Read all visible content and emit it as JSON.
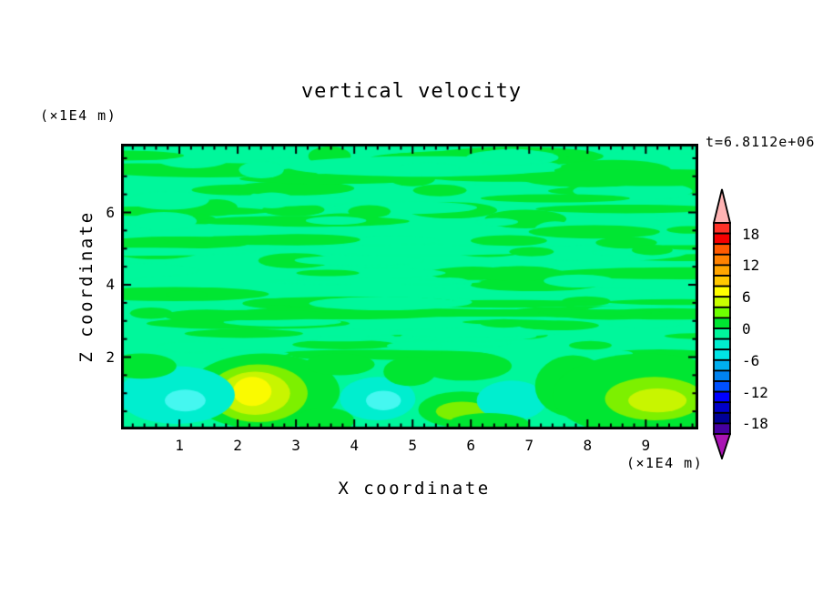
{
  "chart_data": {
    "type": "filled_contour",
    "title": "vertical velocity",
    "timestamp": "t=6.8112e+06",
    "xlabel": "X coordinate",
    "zlabel": "Z coordinate",
    "x_unit": "(×1E4 m)",
    "z_unit": "(×1E4 m)",
    "x_range": [
      0,
      9.9
    ],
    "z_range": [
      0,
      7.9
    ],
    "x_ticks": [
      1,
      2,
      3,
      4,
      5,
      6,
      7,
      8,
      9
    ],
    "x_minor_step": 0.2,
    "z_ticks": [
      2,
      4,
      6
    ],
    "z_minor_step": 0.5,
    "grid": false,
    "legend_position": "right-colorbar",
    "colorbar": {
      "min": -20,
      "max": 20,
      "step": 2,
      "labels": [
        {
          "value": 18,
          "text": "18"
        },
        {
          "value": 12,
          "text": "12"
        },
        {
          "value": 6,
          "text": "6"
        },
        {
          "value": 0,
          "text": "0"
        },
        {
          "value": -6,
          "text": "-6"
        },
        {
          "value": -12,
          "text": "-12"
        },
        {
          "value": -18,
          "text": "-18"
        }
      ],
      "colors": [
        "#ff3228",
        "#f50000",
        "#ff5a00",
        "#ff8200",
        "#ffa500",
        "#ffc800",
        "#ffff00",
        "#c8ff00",
        "#6eff00",
        "#00e632",
        "#00f79b",
        "#00eecf",
        "#00e5e5",
        "#00aff0",
        "#0082f0",
        "#0050ff",
        "#0000ff",
        "#0000c8",
        "#000096",
        "#4600a0"
      ],
      "over_color": "#ffb4b4",
      "under_color": "#aa14b4"
    },
    "field": {
      "background": "spring",
      "level_colors": {
        "green": "#00e632",
        "spring": "#00f79b",
        "turquoise": "#00eecf",
        "cyan": "#45f7f0",
        "chartreuse": "#7df000",
        "yellowgreen": "#c8f500",
        "yellow": "#fafa00"
      },
      "streaks": {
        "seed": 20240613,
        "count": 150,
        "rows": 20,
        "z_min": 2.05,
        "z_max": 7.8,
        "green_fraction": 0.52
      },
      "features": [
        {
          "x": 2.45,
          "z": 1.05,
          "rx": 1.3,
          "rz": 1.05,
          "c": "green"
        },
        {
          "x": 2.35,
          "z": 1.0,
          "rx": 0.85,
          "rz": 0.8,
          "c": "chartreuse"
        },
        {
          "x": 2.3,
          "z": 1.0,
          "rx": 0.6,
          "rz": 0.6,
          "c": "yellowgreen"
        },
        {
          "x": 2.25,
          "z": 1.05,
          "rx": 0.33,
          "rz": 0.4,
          "c": "yellow"
        },
        {
          "x": 0.95,
          "z": 0.95,
          "rx": 1.0,
          "rz": 0.8,
          "c": "turquoise"
        },
        {
          "x": 1.1,
          "z": 0.8,
          "rx": 0.35,
          "rz": 0.3,
          "c": "cyan"
        },
        {
          "x": 4.4,
          "z": 0.85,
          "rx": 0.65,
          "rz": 0.6,
          "c": "turquoise"
        },
        {
          "x": 4.5,
          "z": 0.8,
          "rx": 0.3,
          "rz": 0.27,
          "c": "cyan"
        },
        {
          "x": 5.85,
          "z": 0.55,
          "rx": 0.75,
          "rz": 0.5,
          "c": "green"
        },
        {
          "x": 5.85,
          "z": 0.5,
          "rx": 0.45,
          "rz": 0.27,
          "c": "chartreuse"
        },
        {
          "x": 5.9,
          "z": 1.75,
          "rx": 0.8,
          "rz": 0.4,
          "c": "green"
        },
        {
          "x": 6.7,
          "z": 0.8,
          "rx": 0.6,
          "rz": 0.55,
          "c": "turquoise"
        },
        {
          "x": 7.75,
          "z": 1.2,
          "rx": 0.65,
          "rz": 0.85,
          "c": "green"
        },
        {
          "x": 9.0,
          "z": 0.95,
          "rx": 1.6,
          "rz": 1.15,
          "c": "green"
        },
        {
          "x": 9.15,
          "z": 0.85,
          "rx": 0.85,
          "rz": 0.6,
          "c": "chartreuse"
        },
        {
          "x": 9.2,
          "z": 0.8,
          "rx": 0.5,
          "rz": 0.33,
          "c": "yellowgreen"
        },
        {
          "x": 0.35,
          "z": 1.75,
          "rx": 0.6,
          "rz": 0.35,
          "c": "green"
        },
        {
          "x": 3.75,
          "z": 1.8,
          "rx": 0.6,
          "rz": 0.3,
          "c": "green"
        },
        {
          "x": 4.95,
          "z": 1.6,
          "rx": 0.45,
          "rz": 0.4,
          "c": "green"
        },
        {
          "x": 3.5,
          "z": 0.25,
          "rx": 0.5,
          "rz": 0.35,
          "c": "green"
        },
        {
          "x": 6.3,
          "z": 0.15,
          "rx": 0.7,
          "rz": 0.3,
          "c": "green"
        }
      ]
    }
  }
}
